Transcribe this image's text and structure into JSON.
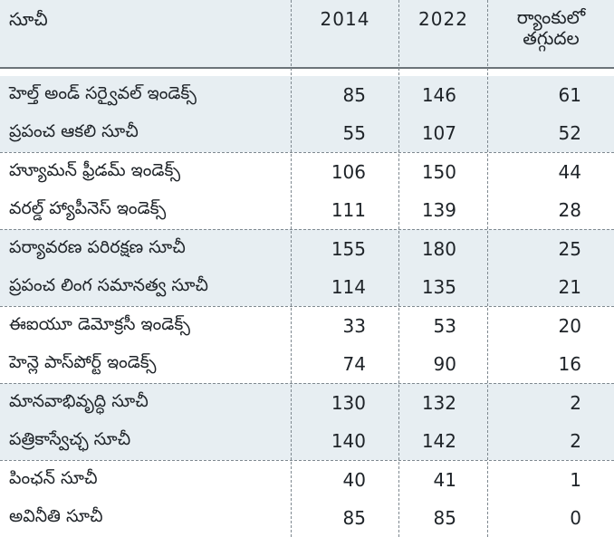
{
  "table": {
    "headers": {
      "name": "సూచీ",
      "y2014": "2014",
      "y2022": "2022",
      "drop_line1": "ర్యాంకులో",
      "drop_line2": "తగ్గుదల"
    },
    "rows": [
      {
        "name": "హెల్త్‌ అండ్‌ సర్వైవల్‌ ఇండెక్స్‌",
        "y2014": "85",
        "y2022": "146",
        "drop": "61"
      },
      {
        "name": "ప్రపంచ ఆకలి సూచీ",
        "y2014": "55",
        "y2022": "107",
        "drop": "52"
      },
      {
        "name": "హ్యూమన్‌ ఫ్రీడమ్‌ ఇండెక్స్‌",
        "y2014": "106",
        "y2022": "150",
        "drop": "44"
      },
      {
        "name": "వరల్డ్‌ హ్యాపీనెస్‌ ఇండెక్స్‌",
        "y2014": "111",
        "y2022": "139",
        "drop": "28"
      },
      {
        "name": "పర్యావరణ పరిరక్షణ సూచీ",
        "y2014": "155",
        "y2022": "180",
        "drop": "25"
      },
      {
        "name": "ప్రపంచ లింగ సమానత్వ సూచీ",
        "y2014": "114",
        "y2022": "135",
        "drop": "21"
      },
      {
        "name": "ఈఐయూ డెమోక్రసీ ఇండెక్స్‌",
        "y2014": "33",
        "y2022": "53",
        "drop": "20"
      },
      {
        "name": "హెన్లె పాస్‌పోర్ట్‌ ఇండెక్స్‌",
        "y2014": "74",
        "y2022": "90",
        "drop": "16"
      },
      {
        "name": "మానవాభివృద్ధి సూచీ",
        "y2014": "130",
        "y2022": "132",
        "drop": "2"
      },
      {
        "name": "పత్రికాస్వేచ్ఛ సూచీ",
        "y2014": "140",
        "y2022": "142",
        "drop": "2"
      },
      {
        "name": "పింఛన్‌ సూచీ",
        "y2014": "40",
        "y2022": "41",
        "drop": "1"
      },
      {
        "name": "అవినీతి సూచీ",
        "y2014": "85",
        "y2022": "85",
        "drop": "0"
      }
    ]
  },
  "colors": {
    "band_shade": "#e7eef2",
    "text": "#1e2328",
    "rule": "#6c7479"
  }
}
